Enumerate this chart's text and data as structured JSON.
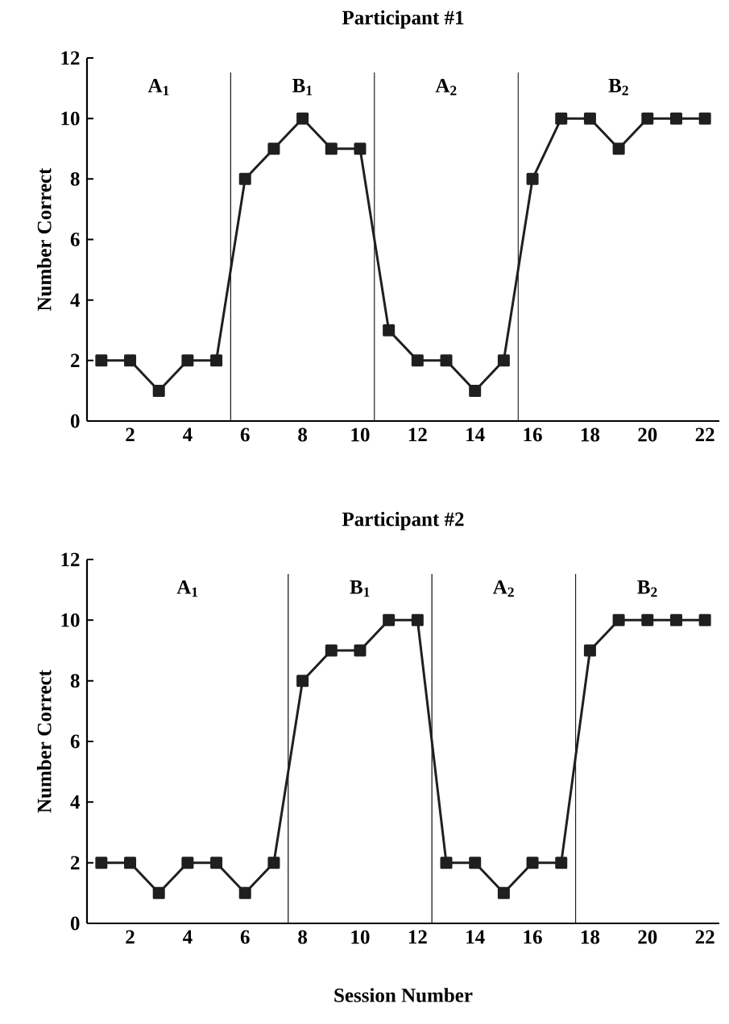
{
  "chart_data": [
    {
      "type": "line",
      "title": "Participant #1",
      "ylabel": "Number Correct",
      "x": [
        1,
        2,
        3,
        4,
        5,
        6,
        7,
        8,
        9,
        10,
        11,
        12,
        13,
        14,
        15,
        16,
        17,
        18,
        19,
        20,
        21,
        22
      ],
      "series": [
        {
          "color": "#1f1f1f",
          "values": [
            2,
            2,
            1,
            2,
            2,
            8,
            9,
            10,
            9,
            9,
            3,
            2,
            2,
            1,
            2,
            8,
            10,
            10,
            9,
            10,
            10,
            10
          ]
        }
      ],
      "xlim": [
        0.5,
        22.5
      ],
      "xticks": [
        2,
        4,
        6,
        8,
        10,
        12,
        14,
        16,
        18,
        20,
        22
      ],
      "ylim": [
        0,
        12
      ],
      "yticks": [
        0,
        2,
        4,
        6,
        8,
        10,
        12
      ],
      "ref_lines": [
        {
          "axis": "x",
          "value": 5.5,
          "color": "#1f1f1f"
        },
        {
          "axis": "x",
          "value": 10.5,
          "color": "#1f1f1f"
        },
        {
          "axis": "x",
          "value": 15.5,
          "color": "#1f1f1f"
        }
      ],
      "annotations": [
        "A$_{1}$",
        "B$_{1}$",
        "A$_{2}$",
        "B$_{2}$"
      ],
      "grid": false,
      "marker": "square",
      "line_style": "solid"
    },
    {
      "type": "line",
      "title": "Participant #2",
      "ylabel": "Number Correct",
      "xlabel": "Session Number",
      "x": [
        1,
        2,
        3,
        4,
        5,
        6,
        7,
        8,
        9,
        10,
        11,
        12,
        13,
        14,
        15,
        16,
        17,
        18,
        19,
        20,
        21,
        22
      ],
      "series": [
        {
          "color": "#1f1f1f",
          "values": [
            2,
            2,
            1,
            2,
            2,
            1,
            2,
            8,
            9,
            9,
            10,
            10,
            2,
            2,
            1,
            2,
            2,
            9,
            10,
            10,
            10,
            10
          ]
        }
      ],
      "xlim": [
        0.5,
        22.5
      ],
      "xticks": [
        2,
        4,
        6,
        8,
        10,
        12,
        14,
        16,
        18,
        20,
        22
      ],
      "ylim": [
        0,
        12
      ],
      "yticks": [
        0,
        2,
        4,
        6,
        8,
        10,
        12
      ],
      "ref_lines": [
        {
          "axis": "x",
          "value": 7.5,
          "color": "#1f1f1f"
        },
        {
          "axis": "x",
          "value": 12.5,
          "color": "#1f1f1f"
        },
        {
          "axis": "x",
          "value": 17.5,
          "color": "#1f1f1f"
        }
      ],
      "annotations": [
        "A$_{1}$",
        "B$_{1}$",
        "A$_{2}$",
        "B$_{2}$"
      ],
      "grid": false,
      "marker": "square",
      "line_style": "solid"
    }
  ]
}
